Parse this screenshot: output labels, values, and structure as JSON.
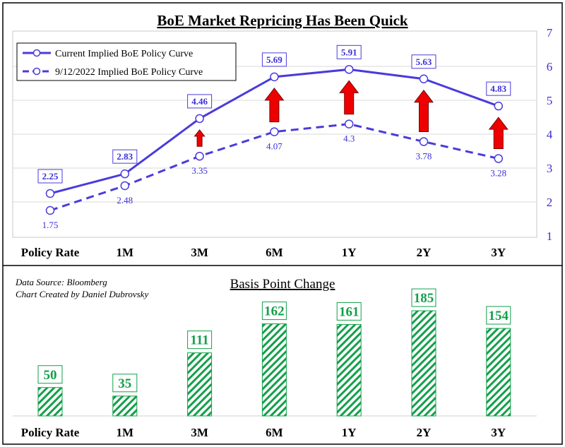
{
  "colors": {
    "line": "#4a3bdc",
    "arrow": "#ee0000",
    "bar": "#13a04a",
    "frame": "#000000"
  },
  "source_lines": [
    "Data Source: Bloomberg",
    "Chart Created by Daniel Dubrovsky"
  ],
  "chart_data": [
    {
      "type": "line",
      "title": "BoE Market Repricing Has Been Quick",
      "categories": [
        "Policy Rate",
        "1M",
        "3M",
        "6M",
        "1Y",
        "2Y",
        "3Y"
      ],
      "series": [
        {
          "name": "Current Implied BoE Policy Curve",
          "style": "solid",
          "values": [
            2.25,
            2.83,
            4.46,
            5.69,
            5.91,
            5.63,
            4.83
          ]
        },
        {
          "name": "9/12/2022 Implied BoE Policy Curve",
          "style": "dashed",
          "values": [
            1.75,
            2.48,
            3.35,
            4.07,
            4.3,
            3.78,
            3.28
          ]
        }
      ],
      "ylim": [
        1,
        7
      ],
      "yticks": [
        1,
        2,
        3,
        4,
        5,
        6,
        7
      ],
      "y_axis_side": "right",
      "grid": true,
      "legend_position": "top-left",
      "annotations": "red up-arrows between curves at 3M, 6M, 1Y, 2Y, 3Y"
    },
    {
      "type": "bar",
      "title": "Basis Point Change",
      "categories": [
        "Policy Rate",
        "1M",
        "3M",
        "6M",
        "1Y",
        "2Y",
        "3Y"
      ],
      "values": [
        50,
        35,
        111,
        162,
        161,
        185,
        154
      ],
      "fill": "diagonal hatch"
    }
  ]
}
